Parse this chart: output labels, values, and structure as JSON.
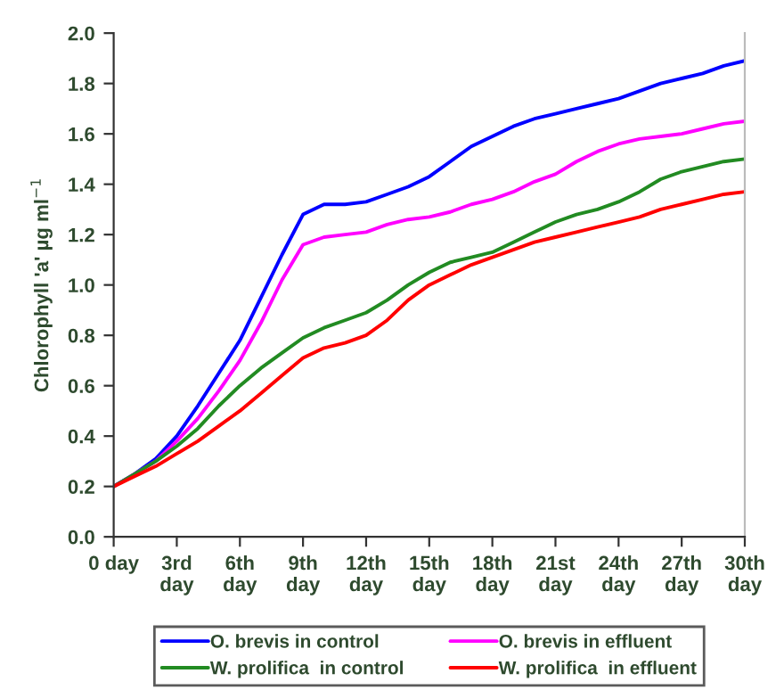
{
  "chart_data": {
    "type": "line",
    "ylabel": "Chlorophyll 'a' µg ml$^{−1}$",
    "x": [
      0,
      1,
      2,
      3,
      4,
      5,
      6,
      7,
      8,
      9,
      10,
      11,
      12,
      13,
      14,
      15,
      16,
      17,
      18,
      19,
      20,
      21,
      22,
      23,
      24,
      25,
      26,
      27,
      28,
      29,
      30
    ],
    "series": [
      {
        "name": "O. brevis in control",
        "color": "#0000ff",
        "values": [
          0.2,
          0.25,
          0.31,
          0.4,
          0.52,
          0.65,
          0.78,
          0.95,
          1.12,
          1.28,
          1.32,
          1.32,
          1.33,
          1.36,
          1.39,
          1.43,
          1.49,
          1.55,
          1.59,
          1.63,
          1.66,
          1.68,
          1.7,
          1.72,
          1.74,
          1.77,
          1.8,
          1.82,
          1.84,
          1.87,
          1.89
        ]
      },
      {
        "name": "O. brevis in effluent",
        "color": "#ff00ff",
        "values": [
          0.2,
          0.25,
          0.3,
          0.38,
          0.47,
          0.58,
          0.7,
          0.85,
          1.02,
          1.16,
          1.19,
          1.2,
          1.21,
          1.24,
          1.26,
          1.27,
          1.29,
          1.32,
          1.34,
          1.37,
          1.41,
          1.44,
          1.49,
          1.53,
          1.56,
          1.58,
          1.59,
          1.6,
          1.62,
          1.64,
          1.65
        ]
      },
      {
        "name": "W. prolifica  in control",
        "color": "#228b22",
        "values": [
          0.2,
          0.25,
          0.3,
          0.36,
          0.43,
          0.52,
          0.6,
          0.67,
          0.73,
          0.79,
          0.83,
          0.86,
          0.89,
          0.94,
          1.0,
          1.05,
          1.09,
          1.11,
          1.13,
          1.17,
          1.21,
          1.25,
          1.28,
          1.3,
          1.33,
          1.37,
          1.42,
          1.45,
          1.47,
          1.49,
          1.5
        ]
      },
      {
        "name": "W. prolifica  in effluent",
        "color": "#ff0000",
        "values": [
          0.2,
          0.24,
          0.28,
          0.33,
          0.38,
          0.44,
          0.5,
          0.57,
          0.64,
          0.71,
          0.75,
          0.77,
          0.8,
          0.86,
          0.94,
          1.0,
          1.04,
          1.08,
          1.11,
          1.14,
          1.17,
          1.19,
          1.21,
          1.23,
          1.25,
          1.27,
          1.3,
          1.32,
          1.34,
          1.36,
          1.37
        ]
      }
    ],
    "xlim": [
      0,
      30
    ],
    "xticks": [
      {
        "value": 0,
        "label": "0 day"
      },
      {
        "value": 3,
        "label": "3rd\nday"
      },
      {
        "value": 6,
        "label": "6th\nday"
      },
      {
        "value": 9,
        "label": "9th\nday"
      },
      {
        "value": 12,
        "label": "12th\nday"
      },
      {
        "value": 15,
        "label": "15th\nday"
      },
      {
        "value": 18,
        "label": "18th\nday"
      },
      {
        "value": 21,
        "label": "21st\nday"
      },
      {
        "value": 24,
        "label": "24th\nday"
      },
      {
        "value": 27,
        "label": "27th\nday"
      },
      {
        "value": 30,
        "label": "30th\nday"
      }
    ],
    "ylim": [
      0,
      2.0
    ],
    "yticks": [
      {
        "value": 0,
        "label": "0.0"
      },
      {
        "value": 0.2,
        "label": "0.2"
      },
      {
        "value": 0.4,
        "label": "0.4"
      },
      {
        "value": 0.6,
        "label": "0.6"
      },
      {
        "value": 0.8,
        "label": "0.8"
      },
      {
        "value": 1.0,
        "label": "1.0"
      },
      {
        "value": 1.2,
        "label": "1.2"
      },
      {
        "value": 1.4,
        "label": "1.4"
      },
      {
        "value": 1.6,
        "label": "1.6"
      },
      {
        "value": 1.8,
        "label": "1.8"
      },
      {
        "value": 2.0,
        "label": "2.0"
      }
    ],
    "grid": false,
    "legend": "bottom",
    "marker": "none",
    "line_style": "solid"
  }
}
